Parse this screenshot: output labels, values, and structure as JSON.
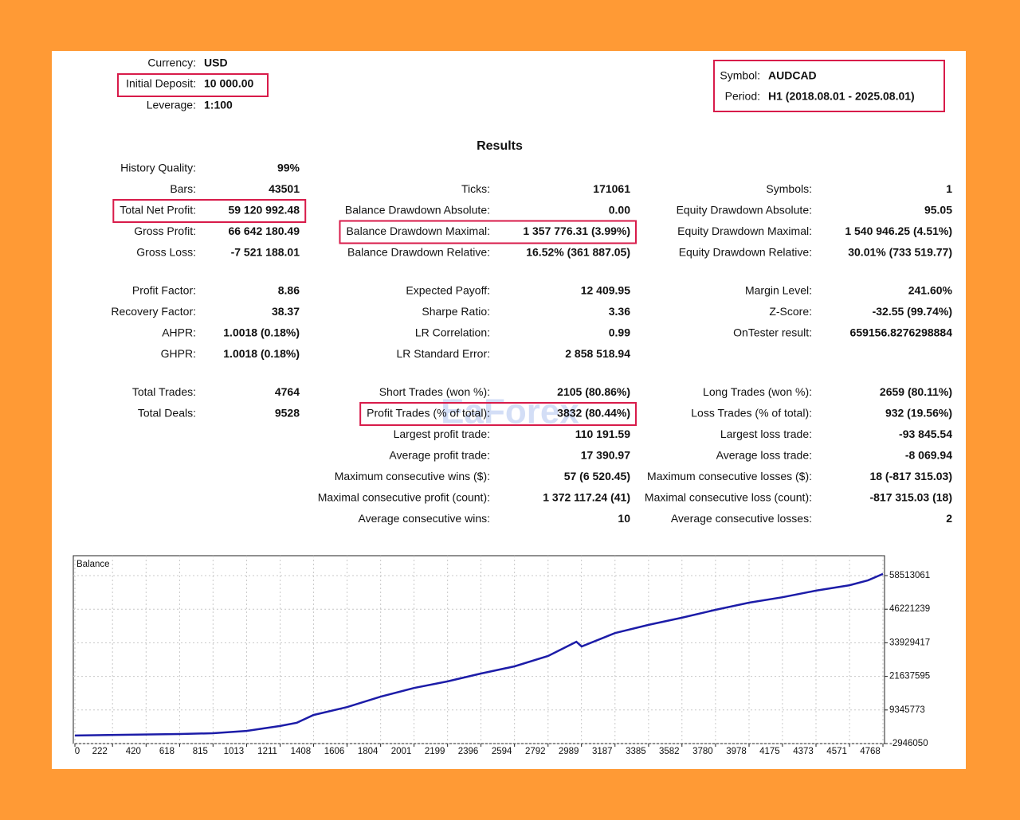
{
  "header": {
    "currency": {
      "label": "Currency:",
      "value": "USD"
    },
    "initial_deposit": {
      "label": "Initial Deposit:",
      "value": "10 000.00"
    },
    "leverage": {
      "label": "Leverage:",
      "value": "1:100"
    },
    "symbol": {
      "label": "Symbol:",
      "value": "AUDCAD"
    },
    "period": {
      "label": "Period:",
      "value": "H1 (2018.08.01 - 2025.08.01)"
    }
  },
  "results_title": "Results",
  "watermark": "EaForex",
  "stats": [
    [
      {
        "left": {
          "label": "History Quality:",
          "value": "99%"
        }
      },
      {
        "left": {
          "label": "Bars:",
          "value": "43501"
        },
        "middle": {
          "label": "Ticks:",
          "value": "171061"
        },
        "right": {
          "label": "Symbols:",
          "value": "1"
        }
      },
      {
        "left": {
          "label": "Total Net Profit:",
          "value": "59 120 992.48",
          "highlight": true
        },
        "middle": {
          "label": "Balance Drawdown Absolute:",
          "value": "0.00"
        },
        "right": {
          "label": "Equity Drawdown Absolute:",
          "value": "95.05"
        }
      },
      {
        "left": {
          "label": "Gross Profit:",
          "value": "66 642 180.49"
        },
        "middle": {
          "label": "Balance Drawdown Maximal:",
          "value": "1 357 776.31 (3.99%)",
          "highlight": true
        },
        "right": {
          "label": "Equity Drawdown Maximal:",
          "value": "1 540 946.25 (4.51%)"
        }
      },
      {
        "left": {
          "label": "Gross Loss:",
          "value": "-7 521 188.01"
        },
        "middle": {
          "label": "Balance Drawdown Relative:",
          "value": "16.52% (361 887.05)"
        },
        "right": {
          "label": "Equity Drawdown Relative:",
          "value": "30.01% (733 519.77)"
        }
      }
    ],
    [
      {
        "left": {
          "label": "Profit Factor:",
          "value": "8.86"
        },
        "middle": {
          "label": "Expected Payoff:",
          "value": "12 409.95"
        },
        "right": {
          "label": "Margin Level:",
          "value": "241.60%"
        }
      },
      {
        "left": {
          "label": "Recovery Factor:",
          "value": "38.37"
        },
        "middle": {
          "label": "Sharpe Ratio:",
          "value": "3.36"
        },
        "right": {
          "label": "Z-Score:",
          "value": "-32.55 (99.74%)"
        }
      },
      {
        "left": {
          "label": "AHPR:",
          "value": "1.0018 (0.18%)"
        },
        "middle": {
          "label": "LR Correlation:",
          "value": "0.99"
        },
        "right": {
          "label": "OnTester result:",
          "value": "659156.8276298884"
        }
      },
      {
        "left": {
          "label": "GHPR:",
          "value": "1.0018 (0.18%)"
        },
        "middle": {
          "label": "LR Standard Error:",
          "value": "2 858 518.94"
        }
      }
    ],
    [
      {
        "left": {
          "label": "Total Trades:",
          "value": "4764"
        },
        "middle": {
          "label": "Short Trades (won %):",
          "value": "2105 (80.86%)"
        },
        "right": {
          "label": "Long Trades (won %):",
          "value": "2659 (80.11%)"
        }
      },
      {
        "left": {
          "label": "Total Deals:",
          "value": "9528"
        },
        "middle": {
          "label": "Profit Trades (% of total):",
          "value": "3832 (80.44%)",
          "highlight": true
        },
        "right": {
          "label": "Loss Trades (% of total):",
          "value": "932 (19.56%)"
        }
      },
      {
        "middle": {
          "label": "Largest profit trade:",
          "value": "110 191.59"
        },
        "right": {
          "label": "Largest loss trade:",
          "value": "-93 845.54"
        }
      },
      {
        "middle": {
          "label": "Average profit trade:",
          "value": "17 390.97"
        },
        "right": {
          "label": "Average loss trade:",
          "value": "-8 069.94"
        }
      },
      {
        "middle": {
          "label": "Maximum consecutive wins ($):",
          "value": "57 (6 520.45)"
        },
        "right": {
          "label": "Maximum consecutive losses ($):",
          "value": "18 (-817 315.03)"
        }
      },
      {
        "middle": {
          "label": "Maximal consecutive profit (count):",
          "value": "1 372 117.24 (41)"
        },
        "right": {
          "label": "Maximal consecutive loss (count):",
          "value": "-817 315.03 (18)"
        }
      },
      {
        "middle": {
          "label": "Average consecutive wins:",
          "value": "10"
        },
        "right": {
          "label": "Average consecutive losses:",
          "value": "2"
        }
      }
    ]
  ],
  "chart_data": {
    "type": "line",
    "title": "Balance",
    "color": "#1c1ca8",
    "grid": true,
    "x": [
      0,
      618,
      815,
      1013,
      1211,
      1310,
      1408,
      1606,
      1804,
      2001,
      2199,
      2396,
      2594,
      2792,
      2959,
      2990,
      3187,
      3385,
      3582,
      3780,
      3978,
      4175,
      4373,
      4571,
      4680,
      4768
    ],
    "values": [
      10000,
      550000,
      850000,
      1700000,
      3500000,
      4700000,
      7500000,
      10400000,
      14200000,
      17400000,
      19800000,
      22700000,
      25300000,
      29100000,
      34300000,
      32600000,
      37500000,
      40500000,
      43100000,
      46000000,
      48600000,
      50600000,
      53000000,
      55000000,
      56800000,
      59130992
    ],
    "xlim": [
      0,
      4768
    ],
    "xticks": [
      0,
      222,
      420,
      618,
      815,
      1013,
      1211,
      1408,
      1606,
      1804,
      2001,
      2199,
      2396,
      2594,
      2792,
      2989,
      3187,
      3385,
      3582,
      3780,
      3978,
      4175,
      4373,
      4571,
      4768
    ],
    "ylim": [
      -2946050,
      65800000
    ],
    "yticks": [
      -2946050,
      9345773,
      21637595,
      33929417,
      46221239,
      58513061
    ]
  }
}
